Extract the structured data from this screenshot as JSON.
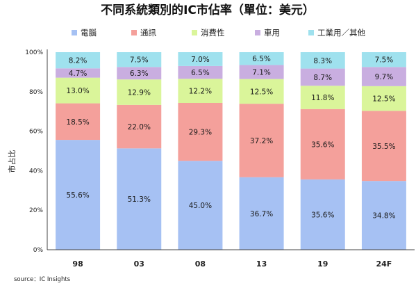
{
  "chart_data": {
    "type": "stacked_bar",
    "title": "不同系統類別的IC市佔率（單位：美元）",
    "ylabel": "市占比",
    "xlabel": "",
    "ylim": [
      0,
      100
    ],
    "ytick_labels": [
      "0%",
      "20%",
      "40%",
      "60%",
      "80%",
      "100%"
    ],
    "categories": [
      "98",
      "03",
      "08",
      "13",
      "19",
      "24F"
    ],
    "series": [
      {
        "name": "電腦",
        "color": "#a6c1f3",
        "values": [
          55.6,
          51.3,
          45.0,
          36.7,
          35.6,
          34.8
        ]
      },
      {
        "name": "通訊",
        "color": "#f4a09b",
        "values": [
          18.5,
          22.0,
          29.3,
          37.2,
          35.6,
          35.5
        ]
      },
      {
        "name": "消費性",
        "color": "#daf59a",
        "values": [
          13.0,
          12.9,
          12.2,
          12.5,
          11.8,
          12.5
        ]
      },
      {
        "name": "車用",
        "color": "#c9aee0",
        "values": [
          4.7,
          6.3,
          6.5,
          7.1,
          8.7,
          9.7
        ]
      },
      {
        "name": "工業用／其他",
        "color": "#9fe1ee",
        "values": [
          8.2,
          7.5,
          7.0,
          6.5,
          8.3,
          7.5
        ]
      }
    ],
    "value_format_suffix": "%",
    "legend_position": "top",
    "grid": false
  },
  "source_note": "source：IC Insights"
}
